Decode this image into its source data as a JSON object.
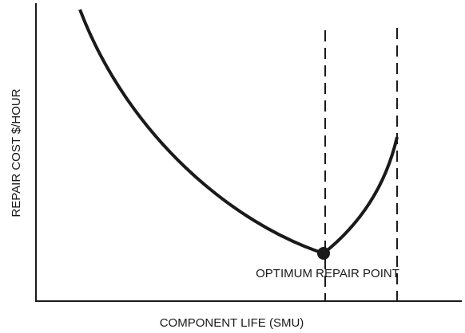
{
  "axis_labels": {
    "x": "COMPONENT LIFE (SMU)",
    "y": "REPAIR COST $/HOUR"
  },
  "annotation": "OPTIMUM REPAIR POINT"
}
